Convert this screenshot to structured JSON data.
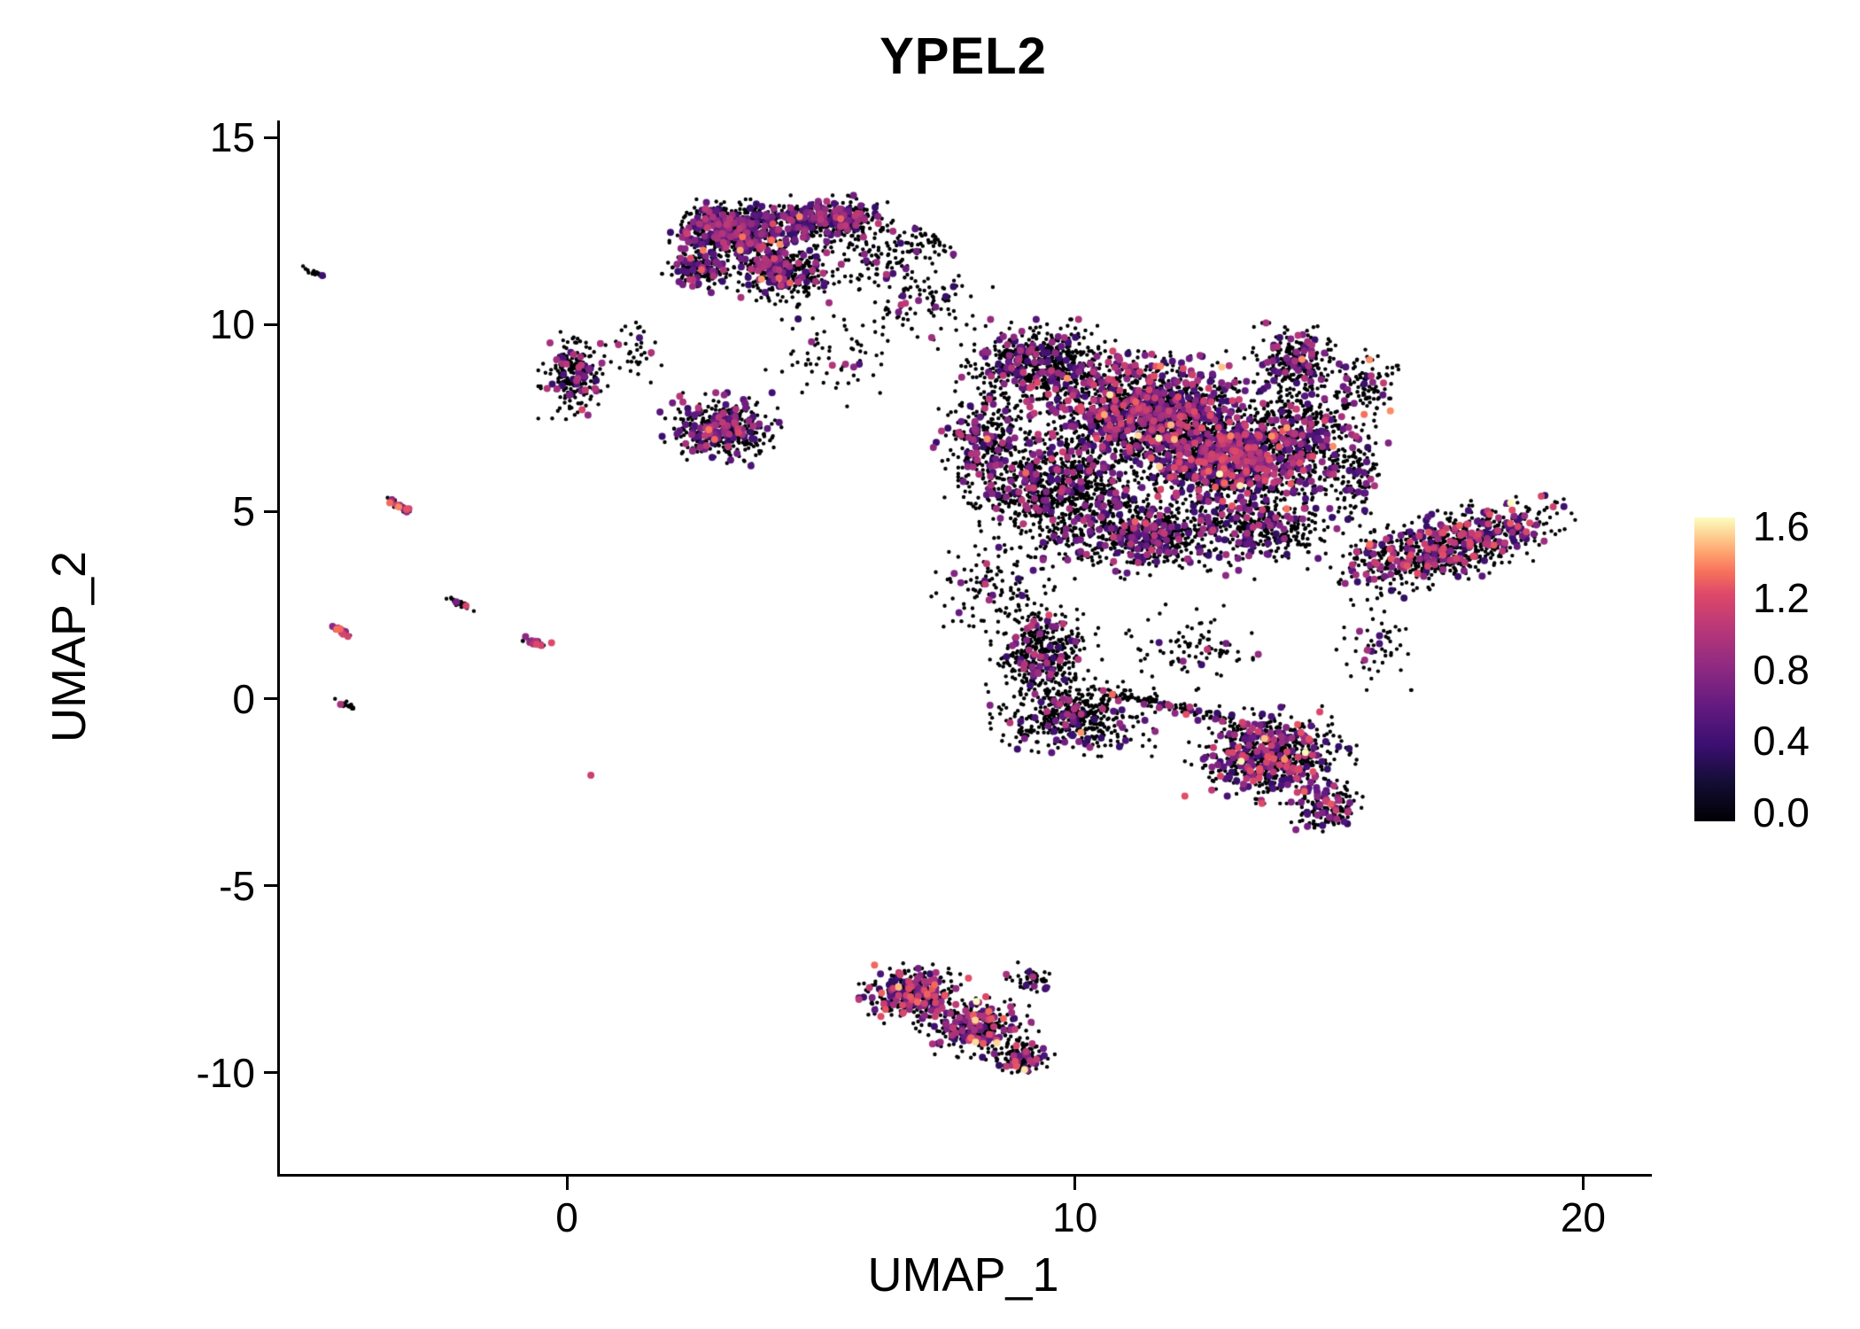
{
  "chart_data": {
    "type": "scatter",
    "title": "YPEL2",
    "xlabel": "UMAP_1",
    "ylabel": "UMAP_2",
    "xlim": [
      -5.7,
      21.3
    ],
    "ylim": [
      -12.7,
      15.45
    ],
    "x_ticks": [
      0,
      10,
      20
    ],
    "y_ticks": [
      15,
      10,
      5,
      0,
      -5,
      -10
    ],
    "grid": false,
    "legend_position": "right",
    "colorbar": {
      "min": 0.0,
      "max": 1.6,
      "ticks": [
        1.6,
        1.2,
        0.8,
        0.4,
        0.0
      ],
      "palette": [
        [
          0.0,
          "#000004"
        ],
        [
          0.13,
          "#140e36"
        ],
        [
          0.25,
          "#3b0f70"
        ],
        [
          0.38,
          "#641a80"
        ],
        [
          0.5,
          "#8c2981"
        ],
        [
          0.63,
          "#b73779"
        ],
        [
          0.75,
          "#de4968"
        ],
        [
          0.82,
          "#f7705c"
        ],
        [
          0.88,
          "#fe9f6d"
        ],
        [
          0.94,
          "#fecf92"
        ],
        [
          1.0,
          "#fcfdbf"
        ]
      ]
    },
    "point_color_zero": "#000004",
    "clusters": [
      {
        "cx": 3.2,
        "cy": 12.5,
        "rx": 0.95,
        "ry": 0.65,
        "n": 650,
        "expr": 0.3
      },
      {
        "cx": 5.0,
        "cy": 12.8,
        "rx": 1.05,
        "ry": 0.5,
        "n": 450,
        "expr": 0.25
      },
      {
        "cx": 4.2,
        "cy": 11.4,
        "rx": 0.85,
        "ry": 0.75,
        "n": 380,
        "expr": 0.22
      },
      {
        "cx": 2.6,
        "cy": 11.5,
        "rx": 0.6,
        "ry": 0.5,
        "n": 180,
        "expr": 0.25
      },
      {
        "cx": 6.1,
        "cy": 11.8,
        "rx": 0.8,
        "ry": 0.8,
        "n": 110,
        "expr": 0.12
      },
      {
        "cx": 7.0,
        "cy": 12.2,
        "rx": 0.55,
        "ry": 0.55,
        "n": 45,
        "expr": 0.1
      },
      {
        "cx": 0.1,
        "cy": 8.6,
        "rx": 0.55,
        "ry": 1.0,
        "n": 230,
        "expr": 0.18
      },
      {
        "cx": 1.3,
        "cy": 9.2,
        "rx": 0.5,
        "ry": 0.7,
        "n": 35,
        "expr": 0.1
      },
      {
        "cx": 3.0,
        "cy": 7.2,
        "rx": 0.95,
        "ry": 0.75,
        "n": 420,
        "expr": 0.28
      },
      {
        "cx": 5.3,
        "cy": 9.2,
        "rx": 1.5,
        "ry": 1.1,
        "n": 70,
        "expr": 0.1
      },
      {
        "cx": 6.9,
        "cy": 10.6,
        "rx": 1.1,
        "ry": 0.8,
        "n": 90,
        "expr": 0.1
      },
      {
        "cx": 9.3,
        "cy": 8.9,
        "rx": 1.3,
        "ry": 0.95,
        "n": 650,
        "expr": 0.15
      },
      {
        "cx": 11.4,
        "cy": 7.6,
        "rx": 1.8,
        "ry": 1.3,
        "n": 1500,
        "expr": 0.3,
        "vhi": 1.2
      },
      {
        "cx": 12.9,
        "cy": 6.4,
        "rx": 1.5,
        "ry": 1.2,
        "n": 1100,
        "expr": 0.33,
        "vhi": 1.25
      },
      {
        "cx": 9.6,
        "cy": 5.6,
        "rx": 1.5,
        "ry": 1.4,
        "n": 950,
        "expr": 0.15
      },
      {
        "cx": 11.4,
        "cy": 4.4,
        "rx": 1.6,
        "ry": 0.95,
        "n": 650,
        "expr": 0.18
      },
      {
        "cx": 14.4,
        "cy": 6.9,
        "rx": 0.95,
        "ry": 1.4,
        "n": 480,
        "expr": 0.2
      },
      {
        "cx": 14.3,
        "cy": 9.0,
        "rx": 0.75,
        "ry": 0.8,
        "n": 260,
        "expr": 0.2
      },
      {
        "cx": 13.7,
        "cy": 4.6,
        "rx": 1.2,
        "ry": 0.9,
        "n": 330,
        "expr": 0.15
      },
      {
        "cx": 8.2,
        "cy": 6.9,
        "rx": 0.8,
        "ry": 1.3,
        "n": 280,
        "expr": 0.2
      },
      {
        "cx": 15.5,
        "cy": 6.0,
        "rx": 0.5,
        "ry": 1.6,
        "n": 140,
        "expr": 0.15
      },
      {
        "cx": 15.6,
        "cy": 8.3,
        "rx": 0.7,
        "ry": 0.9,
        "n": 120,
        "expr": 0.15
      },
      {
        "cx": 15.9,
        "cy": 3.6,
        "rx": 0.7,
        "ry": 0.8,
        "n": 80,
        "expr": 0.15
      },
      {
        "cx": 17.4,
        "cy": 4.1,
        "rx": 1.9,
        "ry": 0.75,
        "n": 750,
        "expr": 0.25,
        "angle": 22,
        "vhi": 1.25
      },
      {
        "cx": 9.3,
        "cy": 1.2,
        "rx": 0.85,
        "ry": 1.05,
        "n": 420,
        "expr": 0.13
      },
      {
        "cx": 9.9,
        "cy": -0.5,
        "rx": 1.25,
        "ry": 0.8,
        "n": 480,
        "expr": 0.13
      },
      {
        "cx": 8.3,
        "cy": 2.9,
        "rx": 1.1,
        "ry": 1.0,
        "n": 120,
        "expr": 0.1
      },
      {
        "cx": 11.8,
        "cy": -0.2,
        "rx": 1.7,
        "ry": 0.14,
        "n": 130,
        "expr": 0.08,
        "angle": -18
      },
      {
        "cx": 12.3,
        "cy": 1.4,
        "rx": 1.4,
        "ry": 0.9,
        "n": 90,
        "expr": 0.1
      },
      {
        "cx": 13.8,
        "cy": -1.5,
        "rx": 1.3,
        "ry": 1.0,
        "n": 750,
        "expr": 0.25,
        "vhi": 1.25
      },
      {
        "cx": 14.9,
        "cy": -2.9,
        "rx": 0.55,
        "ry": 0.55,
        "n": 160,
        "expr": 0.25,
        "vhi": 1.3
      },
      {
        "cx": 15.8,
        "cy": 1.4,
        "rx": 0.8,
        "ry": 0.9,
        "n": 50,
        "expr": 0.1
      },
      {
        "cx": 6.8,
        "cy": -7.9,
        "rx": 0.85,
        "ry": 0.65,
        "n": 380,
        "expr": 0.28,
        "vhi": 1.3
      },
      {
        "cx": 8.0,
        "cy": -8.8,
        "rx": 0.95,
        "ry": 0.65,
        "n": 330,
        "expr": 0.28,
        "vhi": 1.3
      },
      {
        "cx": 8.9,
        "cy": -9.6,
        "rx": 0.5,
        "ry": 0.4,
        "n": 130,
        "expr": 0.3,
        "vhi": 1.3
      },
      {
        "cx": 9.1,
        "cy": -7.5,
        "rx": 0.4,
        "ry": 0.35,
        "n": 45,
        "expr": 0.15
      },
      {
        "cx": -5.05,
        "cy": 11.4,
        "rx": 0.22,
        "ry": 0.06,
        "n": 22,
        "expr": 0.05,
        "angle": -35
      },
      {
        "cx": -3.35,
        "cy": 5.15,
        "rx": 0.28,
        "ry": 0.07,
        "n": 30,
        "expr": 0.5,
        "angle": -40,
        "vlo": 0.7,
        "vhi": 1.4
      },
      {
        "cx": -4.55,
        "cy": 1.85,
        "rx": 0.26,
        "ry": 0.07,
        "n": 26,
        "expr": 0.55,
        "angle": -40,
        "vlo": 0.7,
        "vhi": 1.4
      },
      {
        "cx": -2.15,
        "cy": 2.55,
        "rx": 0.26,
        "ry": 0.07,
        "n": 26,
        "expr": 0.12,
        "angle": -40
      },
      {
        "cx": -0.65,
        "cy": 1.5,
        "rx": 0.3,
        "ry": 0.08,
        "n": 32,
        "expr": 0.3,
        "angle": -20,
        "vlo": 0.6,
        "vhi": 1.3
      },
      {
        "cx": -4.4,
        "cy": -0.15,
        "rx": 0.2,
        "ry": 0.06,
        "n": 18,
        "expr": 0.05,
        "angle": -35
      },
      {
        "cx": 0.45,
        "cy": -2.05,
        "rx": 0.05,
        "ry": 0.05,
        "n": 1,
        "expr": 1.0,
        "vlo": 1.1,
        "vhi": 1.2
      }
    ]
  }
}
